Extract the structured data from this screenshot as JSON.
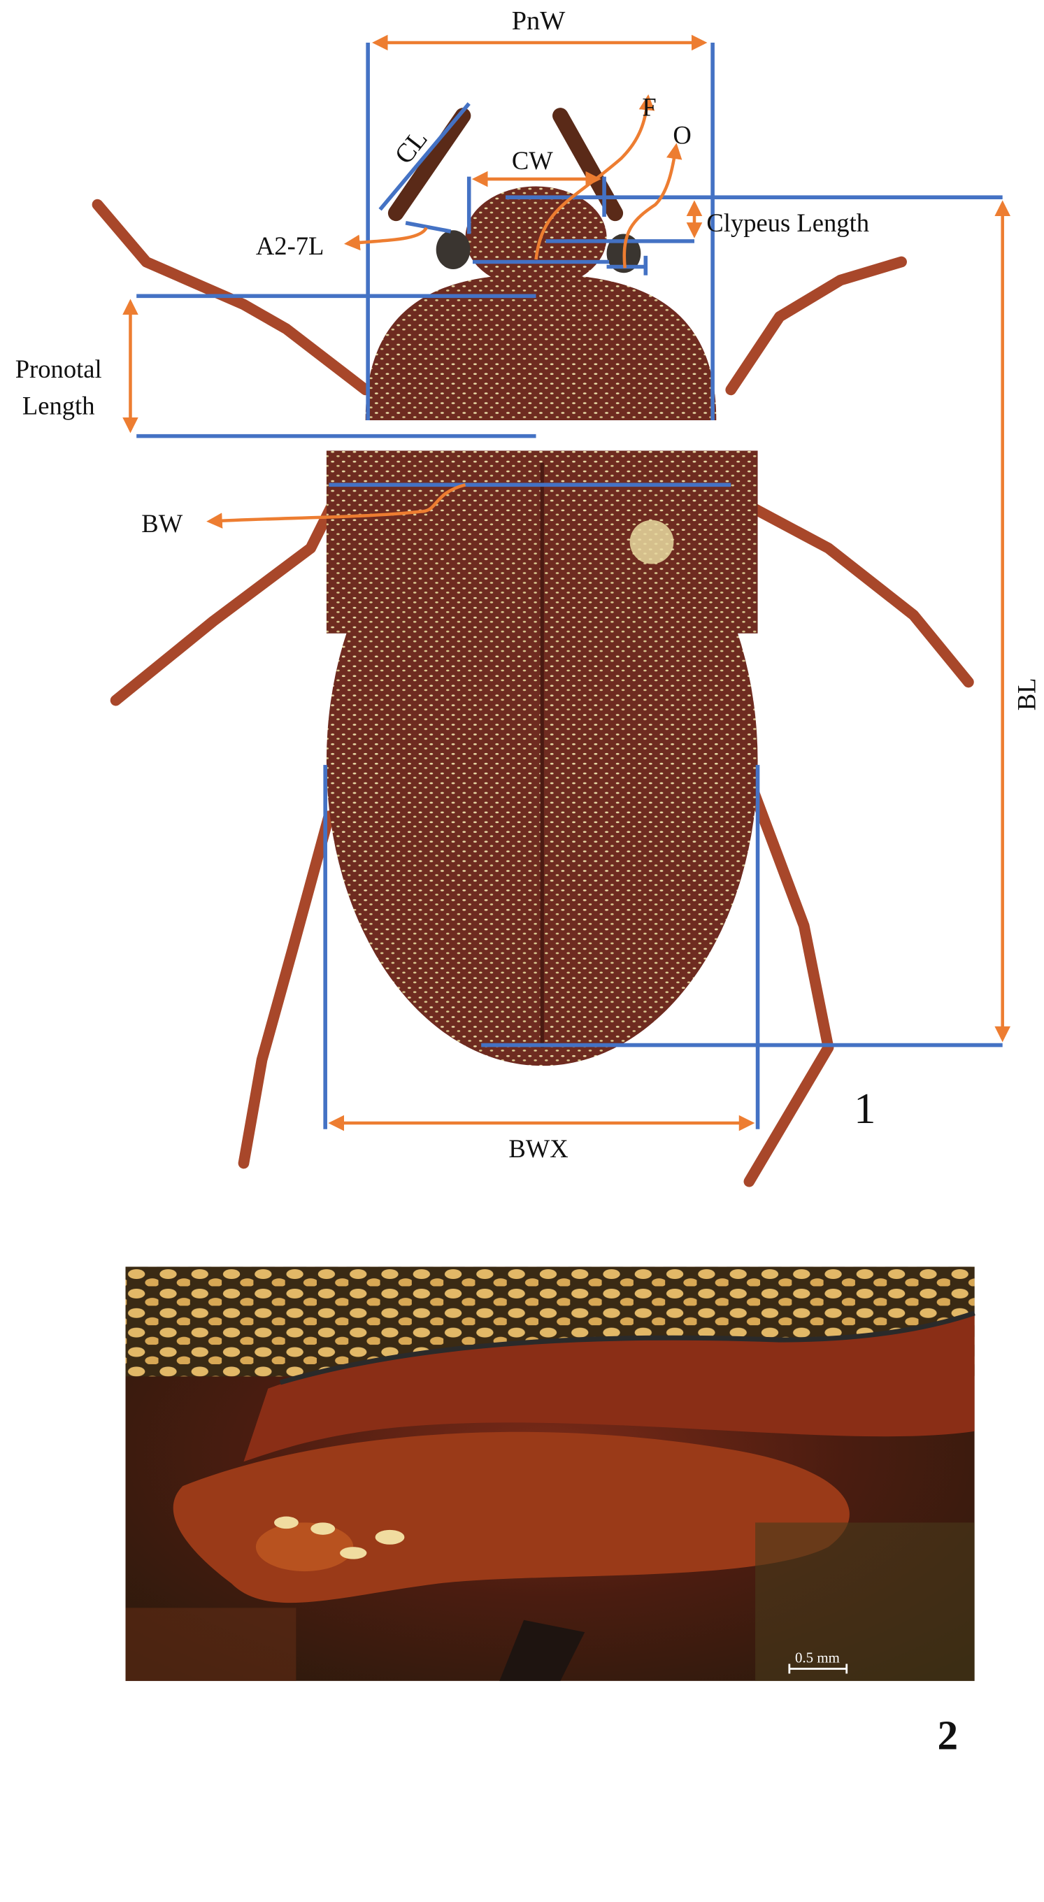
{
  "figure": {
    "panel_1": {
      "label": "1",
      "measurements": {
        "pnw": "PnW",
        "cl": "CL",
        "cw": "CW",
        "f": "F",
        "o": "O",
        "a27l": "A2-7L",
        "clypeus_length": "Clypeus Length",
        "pronotal_length_line1": "Pronotal",
        "pronotal_length_line2": "Length",
        "bw": "BW",
        "bl": "BL",
        "bwx": "BWX"
      }
    },
    "panel_2": {
      "label": "2",
      "scale_bar": "0.5 mm"
    },
    "colors": {
      "measure_line": "#4472c4",
      "arrow": "#ed7d31",
      "beetle_body": "#6b2a1f"
    }
  }
}
